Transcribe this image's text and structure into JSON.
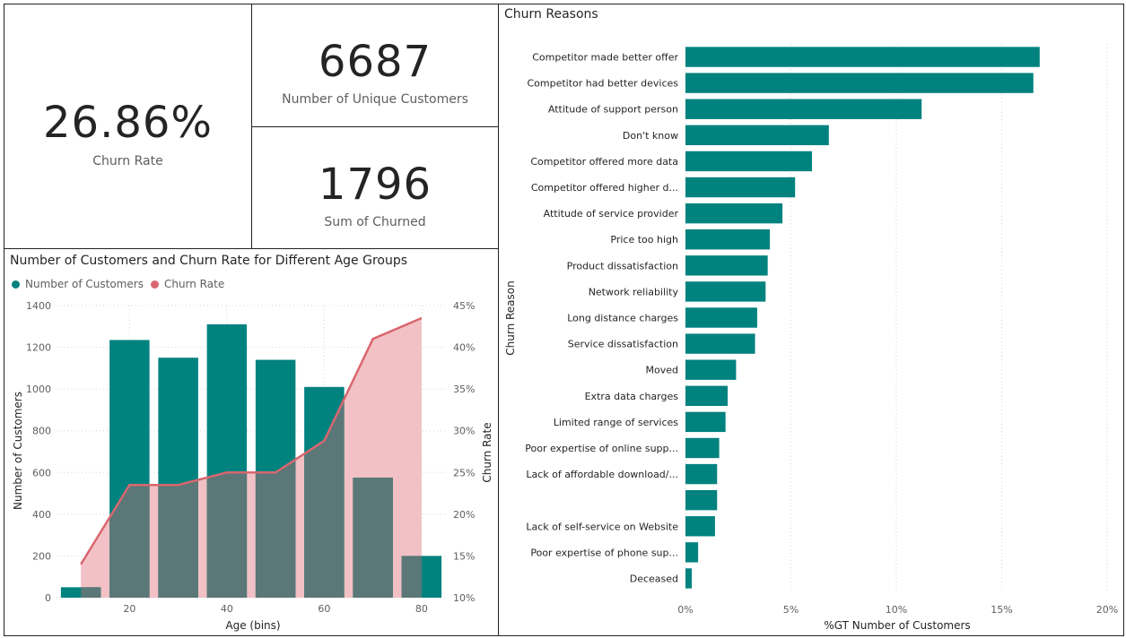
{
  "kpis": {
    "churn_rate": {
      "value": "26.86%",
      "label": "Churn Rate"
    },
    "unique_customers": {
      "value": "6687",
      "label": "Number of Unique Customers"
    },
    "sum_churned": {
      "value": "1796",
      "label": "Sum of Churned"
    }
  },
  "colors": {
    "teal": "#00827f",
    "churn_line": "#d9666f",
    "churn_fill": "#f2c1c5",
    "overlap": "#5b7778"
  },
  "chart_data": [
    {
      "type": "bar+line",
      "title": "Number of Customers and Churn Rate for Different Age Groups",
      "legend": {
        "position": "top-left",
        "items": [
          {
            "name": "Number of Customers",
            "color": "#00827f"
          },
          {
            "name": "Churn Rate",
            "color": "#d9666f"
          }
        ]
      },
      "xlabel": "Age (bins)",
      "ylabel": "Number of Customers",
      "y2label": "Churn Rate",
      "x_ticks": [
        "20",
        "40",
        "60",
        "80"
      ],
      "y_ticks": [
        "0",
        "200",
        "400",
        "600",
        "800",
        "1000",
        "1200",
        "1400"
      ],
      "y2_ticks": [
        "10%",
        "15%",
        "20%",
        "25%",
        "30%",
        "35%",
        "40%",
        "45%"
      ],
      "xlim": [
        5,
        85
      ],
      "ylim": [
        0,
        1400
      ],
      "y2lim": [
        10,
        45
      ],
      "grid": true,
      "x": [
        10,
        20,
        30,
        40,
        50,
        60,
        70,
        80
      ],
      "series": [
        {
          "name": "Number of Customers",
          "type": "bar",
          "values": [
            50,
            1235,
            1150,
            1310,
            1140,
            1010,
            575,
            200
          ]
        },
        {
          "name": "Churn Rate",
          "type": "area-line",
          "values": [
            14.0,
            23.5,
            23.5,
            25.0,
            25.0,
            28.8,
            41.0,
            43.5
          ]
        }
      ]
    },
    {
      "type": "bar",
      "orientation": "horizontal",
      "title": "Churn Reasons",
      "ylabel": "Churn Reason",
      "xlabel": "%GT Number of Customers",
      "x_ticks": [
        "0%",
        "5%",
        "10%",
        "15%",
        "20%"
      ],
      "xlim": [
        0,
        20
      ],
      "grid": true,
      "categories": [
        "Competitor made better offer",
        "Competitor had better devices",
        "Attitude of support person",
        "Don't know",
        "Competitor offered more data",
        "Competitor offered higher d...",
        "Attitude of service provider",
        "Price too high",
        "Product dissatisfaction",
        "Network reliability",
        "Long distance charges",
        "Service dissatisfaction",
        "Moved",
        "Extra data charges",
        "Limited range of services",
        "Poor expertise of online supp...",
        "Lack of affordable download/...",
        "",
        "Lack of self-service on Website",
        "Poor expertise of phone sup...",
        "Deceased"
      ],
      "values": [
        16.8,
        16.5,
        11.2,
        6.8,
        6.0,
        5.2,
        4.6,
        4.0,
        3.9,
        3.8,
        3.4,
        3.3,
        2.4,
        2.0,
        1.9,
        1.6,
        1.5,
        1.5,
        1.4,
        0.6,
        0.3
      ]
    }
  ]
}
